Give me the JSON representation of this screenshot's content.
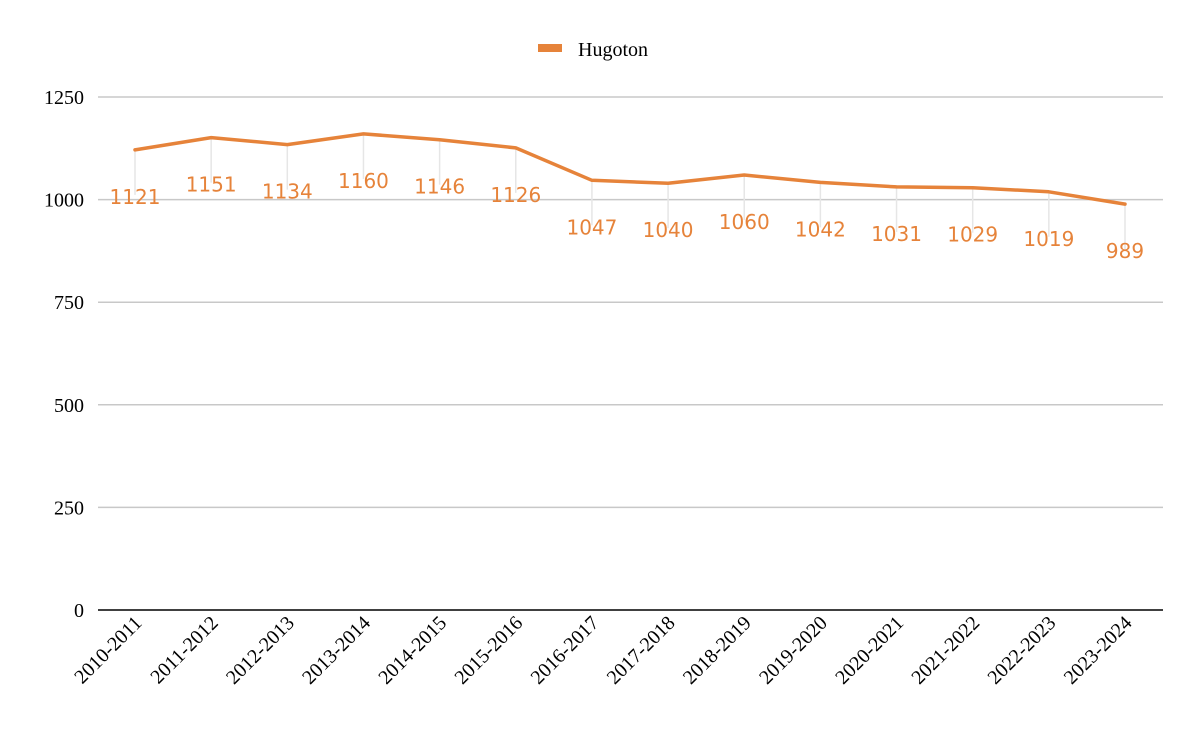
{
  "chart_data": {
    "type": "line",
    "categories": [
      "2010-2011",
      "2011-2012",
      "2012-2013",
      "2013-2014",
      "2014-2015",
      "2015-2016",
      "2016-2017",
      "2017-2018",
      "2018-2019",
      "2019-2020",
      "2020-2021",
      "2021-2022",
      "2022-2023",
      "2023-2024"
    ],
    "series": [
      {
        "name": "Hugoton",
        "values": [
          1121,
          1151,
          1134,
          1160,
          1146,
          1126,
          1047,
          1040,
          1060,
          1042,
          1031,
          1029,
          1019,
          989
        ],
        "color": "#e6833a"
      }
    ],
    "ylim": [
      0,
      1250
    ],
    "yticks": [
      0,
      250,
      500,
      750,
      1000,
      1250
    ],
    "grid": true,
    "legend_position": "top",
    "data_labels": true
  }
}
